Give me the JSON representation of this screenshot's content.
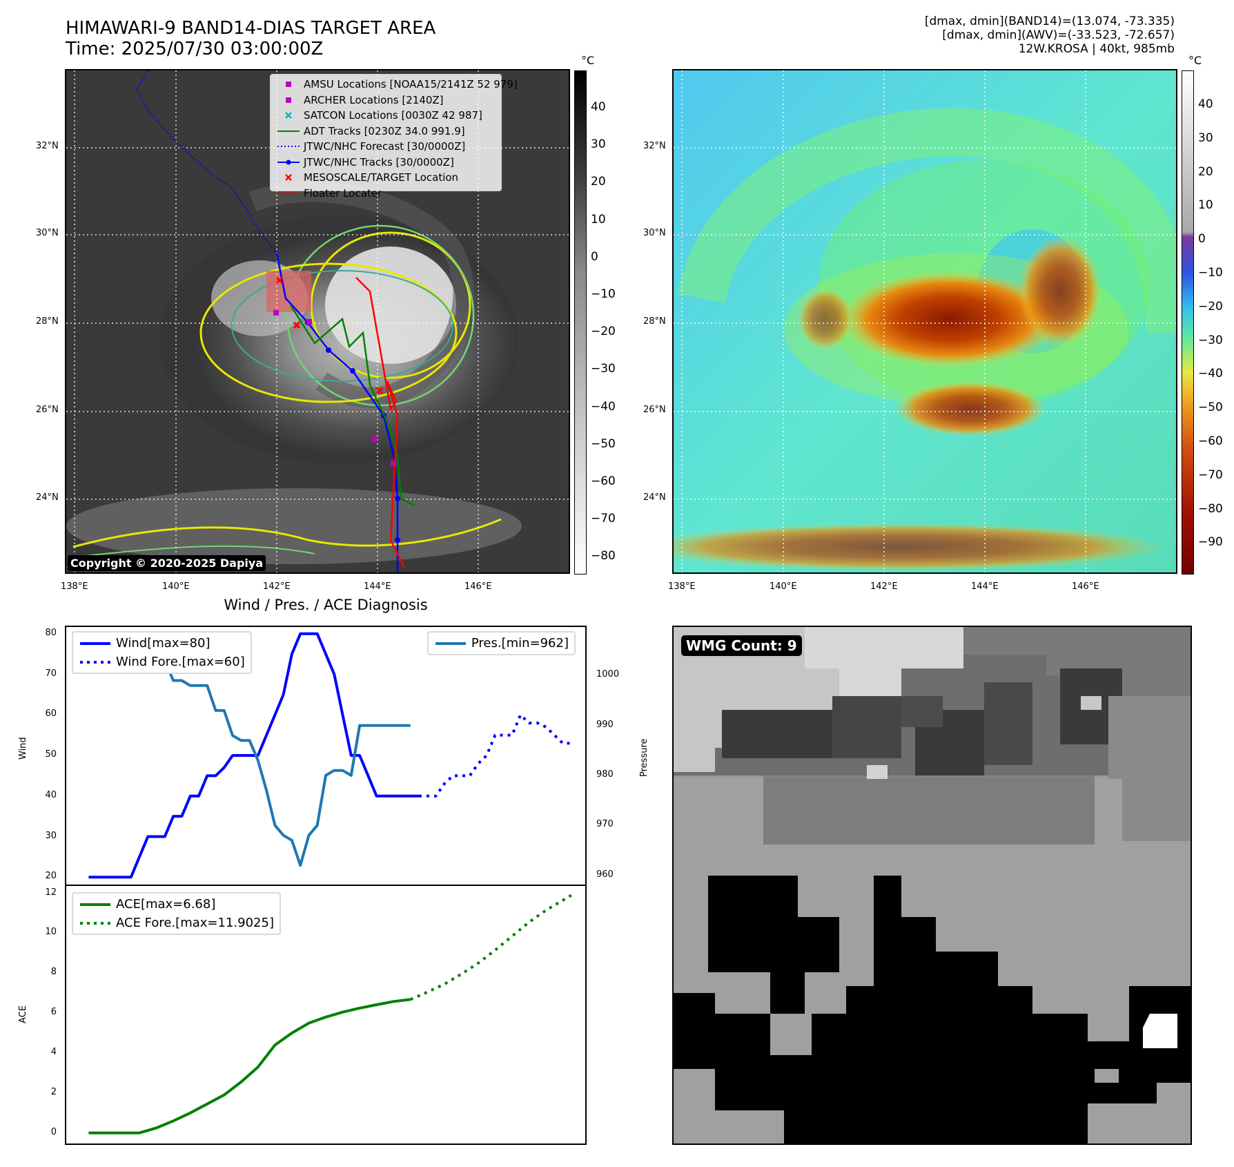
{
  "header": {
    "title_line1": "HIMAWARI-9 BAND14-DIAS TARGET AREA",
    "title_line2": "Time: 2025/07/30 03:00:00Z",
    "info_line1": "[dmax, dmin](BAND14)=(13.074, -73.335)",
    "info_line2": "[dmax, dmin](AWV)=(-33.523, -72.657)",
    "info_line3": "12W.KROSA | 40kt, 985mb"
  },
  "map": {
    "lat_labels": [
      "32°N",
      "30°N",
      "28°N",
      "26°N",
      "24°N"
    ],
    "lon_labels": [
      "138°E",
      "140°E",
      "142°E",
      "144°E",
      "146°E"
    ],
    "copyright": "Copyright © 2020-2025 Dapiya",
    "legend": [
      {
        "label": "AMSU Locations [NOAA15/2141Z 52 979]",
        "symbol": "square",
        "color": "#c000c0"
      },
      {
        "label": "ARCHER Locations [2140Z]",
        "symbol": "square",
        "color": "#c000c0"
      },
      {
        "label": "SATCON Locations [0030Z 42 987]",
        "symbol": "x",
        "color": "#00b8b8"
      },
      {
        "label": "ADT Tracks [0230Z 34.0 991.9]",
        "symbol": "line",
        "color": "#008000"
      },
      {
        "label": "JTWC/NHC Forecast [30/0000Z]",
        "symbol": "dotted",
        "color": "#0000ff"
      },
      {
        "label": "JTWC/NHC Tracks [30/0000Z]",
        "symbol": "line-dot",
        "color": "#0000ff"
      },
      {
        "label": "MESOSCALE/TARGET Location",
        "symbol": "x",
        "color": "#ff0000"
      },
      {
        "label": "Floater Locater",
        "symbol": "line",
        "color": "#ff0000"
      }
    ]
  },
  "colorbar1": {
    "unit": "°C",
    "ticks": [
      "40",
      "30",
      "20",
      "10",
      "0",
      "−10",
      "−20",
      "−30",
      "−40",
      "−50",
      "−60",
      "−70",
      "−80"
    ]
  },
  "colorbar2": {
    "unit": "°C",
    "ticks": [
      "40",
      "30",
      "20",
      "10",
      "0",
      "−10",
      "−20",
      "−30",
      "−40",
      "−50",
      "−60",
      "−70",
      "−80",
      "−90"
    ]
  },
  "wmg": {
    "label": "WMG Count: 9"
  },
  "chart_data": [
    {
      "type": "line",
      "title": "Wind / Pres. / ACE Diagnosis",
      "xlabel": "",
      "ylabel": "Wind",
      "y2label": "Pressure",
      "ylim": [
        18,
        82
      ],
      "y2lim": [
        958,
        1010
      ],
      "yticks": [
        "20",
        "30",
        "40",
        "50",
        "60",
        "70",
        "80"
      ],
      "y2ticks": [
        "960",
        "970",
        "980",
        "990",
        "1000"
      ],
      "series": [
        {
          "name": "Wind[max=80]",
          "axis": "left",
          "style": "solid",
          "color": "#0000ff",
          "x": [
            0,
            1,
            2,
            3,
            4,
            5,
            6,
            7,
            8,
            9,
            10,
            11,
            12,
            13,
            14,
            15,
            16,
            17,
            18,
            19,
            20,
            21,
            22,
            23,
            24,
            25,
            26,
            27,
            28,
            29,
            30,
            31,
            32,
            33,
            34,
            35,
            36,
            37,
            38,
            39
          ],
          "values": [
            20,
            20,
            20,
            20,
            20,
            20,
            25,
            30,
            30,
            30,
            35,
            35,
            40,
            40,
            45,
            45,
            47,
            50,
            50,
            50,
            50,
            55,
            60,
            65,
            75,
            80,
            80,
            80,
            75,
            70,
            60,
            50,
            50,
            45,
            40,
            40,
            40,
            40,
            40,
            40
          ]
        },
        {
          "name": "Wind Fore.[max=60]",
          "axis": "left",
          "style": "dotted",
          "color": "#0000ff",
          "x": [
            39,
            40,
            41,
            42,
            43,
            44,
            45,
            46,
            47,
            48,
            49,
            50,
            51,
            52,
            53,
            54,
            55,
            56,
            57
          ],
          "values": [
            40,
            40,
            40,
            43,
            45,
            45,
            45,
            48,
            50,
            55,
            55,
            55,
            60,
            58,
            58,
            57,
            55,
            53,
            53
          ]
        },
        {
          "name": "Pres.[min=962]",
          "axis": "right",
          "style": "solid",
          "color": "#1f77b4",
          "x": [
            0,
            1,
            2,
            3,
            4,
            5,
            6,
            7,
            8,
            9,
            10,
            11,
            12,
            13,
            14,
            15,
            16,
            17,
            18,
            19,
            20,
            21,
            22,
            23,
            24,
            25,
            26,
            27,
            28,
            29,
            30,
            31,
            32,
            33,
            34,
            35,
            36,
            37,
            38
          ],
          "values": [
            1008,
            1008,
            1008,
            1008,
            1008,
            1005,
            1005,
            1003,
            1003,
            1003,
            999,
            999,
            998,
            998,
            998,
            993,
            993,
            988,
            987,
            987,
            983,
            977,
            970,
            968,
            967,
            962,
            968,
            970,
            980,
            981,
            981,
            980,
            990,
            990,
            990,
            990,
            990,
            990,
            990
          ]
        }
      ]
    },
    {
      "type": "line",
      "xlabel": "",
      "ylabel": "ACE",
      "ylim": [
        -0.6,
        12.4
      ],
      "yticks": [
        "0",
        "2",
        "4",
        "6",
        "8",
        "10",
        "12"
      ],
      "series": [
        {
          "name": "ACE[max=6.68]",
          "style": "solid",
          "color": "#008000",
          "x": [
            0,
            2,
            4,
            6,
            8,
            10,
            12,
            14,
            16,
            18,
            20,
            22,
            24,
            26,
            28,
            30,
            32,
            34,
            36,
            38
          ],
          "values": [
            0,
            0,
            0,
            0,
            0.25,
            0.6,
            1.0,
            1.45,
            1.9,
            2.55,
            3.3,
            4.4,
            5.0,
            5.5,
            5.8,
            6.05,
            6.25,
            6.42,
            6.58,
            6.68
          ]
        },
        {
          "name": "ACE Fore.[max=11.9025]",
          "style": "dotted",
          "color": "#008000",
          "x": [
            38,
            40,
            42,
            44,
            46,
            48,
            50,
            52,
            54,
            56,
            57
          ],
          "values": [
            6.68,
            7.05,
            7.45,
            7.95,
            8.5,
            9.15,
            9.85,
            10.55,
            11.15,
            11.65,
            11.9025
          ]
        }
      ]
    }
  ]
}
